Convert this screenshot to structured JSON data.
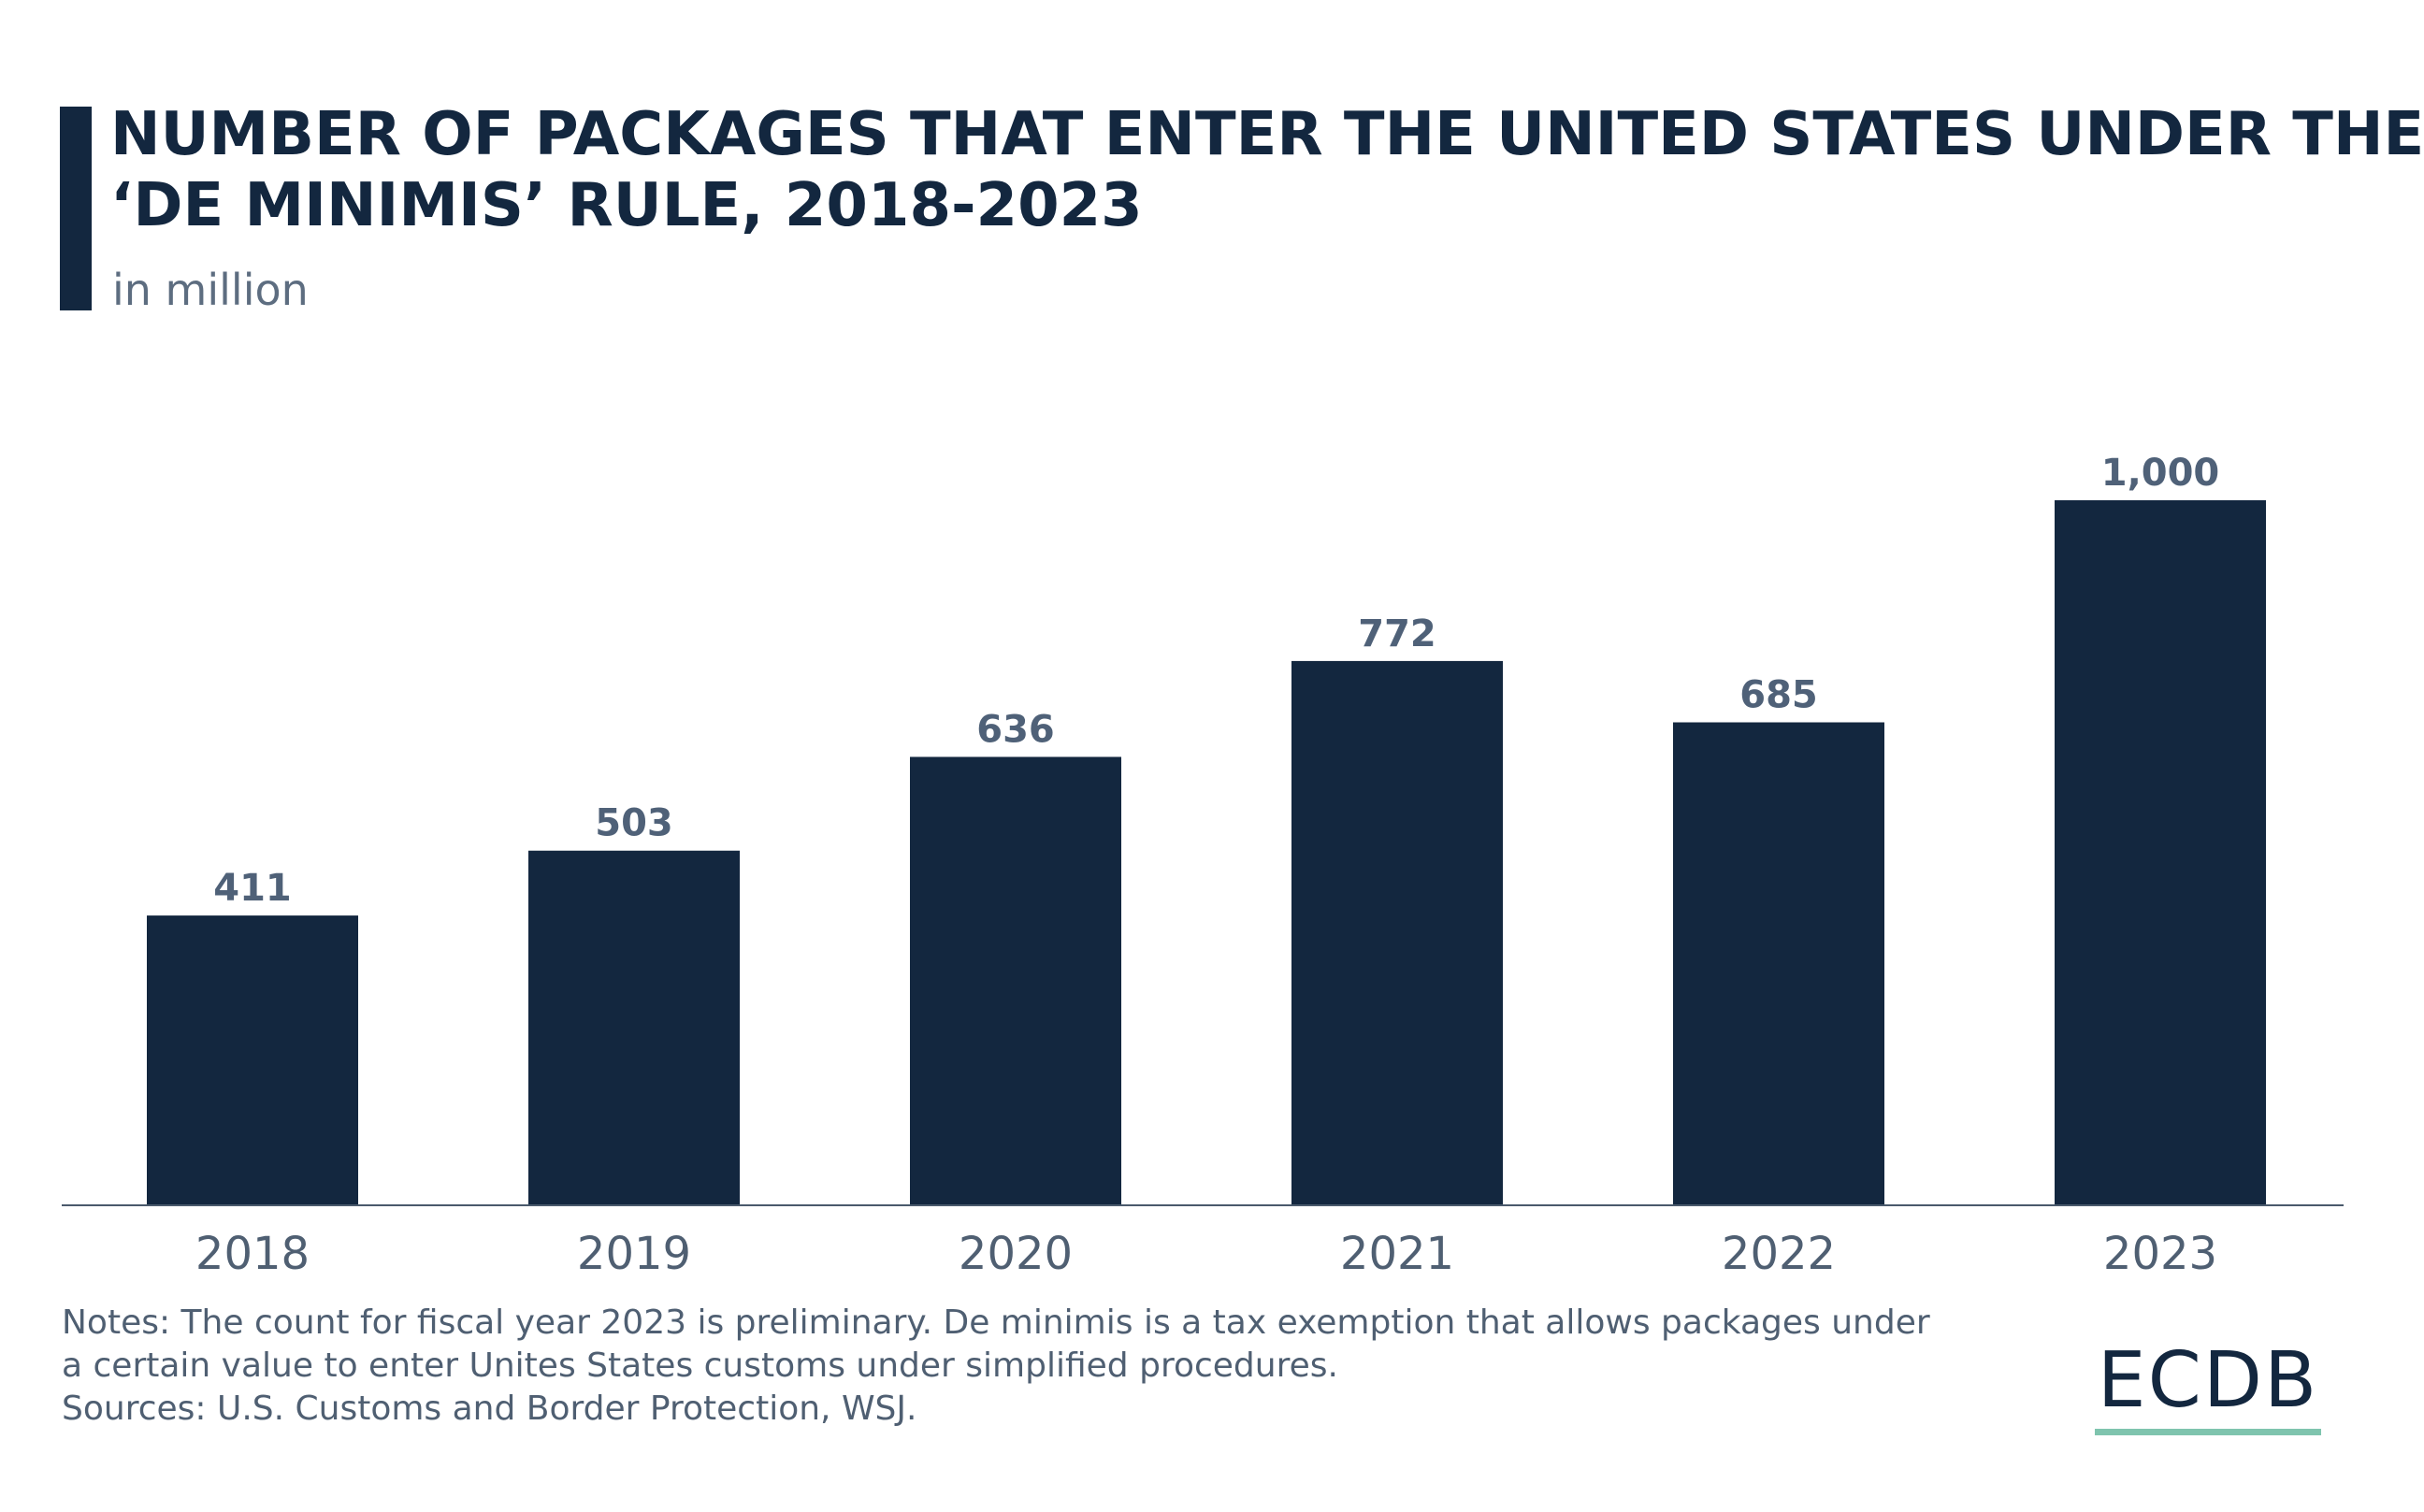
{
  "header": {
    "title_line1": "NUMBER OF PACKAGES THAT ENTER THE UNITED STATES UNDER THE",
    "title_line2": "‘DE MINIMIS’ RULE, 2018-2023",
    "subtitle": "in million"
  },
  "footer": {
    "notes_line1": "Notes: The count for fiscal year 2023 is preliminary. De minimis is a tax exemption that allows packages under",
    "notes_line2": "a certain value to enter Unites States customs under simplified procedures.",
    "sources": "Sources: U.S. Customs and Border Protection, WSJ."
  },
  "logo": {
    "text": "ECDB",
    "underline_color": "#7fc4ae"
  },
  "colors": {
    "bar": "#13273f",
    "data_label": "#4f6178",
    "tick_label": "#4f5f72",
    "axis": "#4a5a6c"
  },
  "chart_data": {
    "type": "bar",
    "title": "NUMBER OF PACKAGES THAT ENTER THE UNITED STATES UNDER THE ‘DE MINIMIS’ RULE, 2018-2023",
    "subtitle": "in million",
    "categories": [
      "2018",
      "2019",
      "2020",
      "2021",
      "2022",
      "2023"
    ],
    "values": [
      411,
      503,
      636,
      772,
      685,
      1000
    ],
    "value_labels": [
      "411",
      "503",
      "636",
      "772",
      "685",
      "1,000"
    ],
    "xlabel": "",
    "ylabel": "",
    "ylim": [
      0,
      1000
    ],
    "grid": false,
    "legend": "none"
  }
}
